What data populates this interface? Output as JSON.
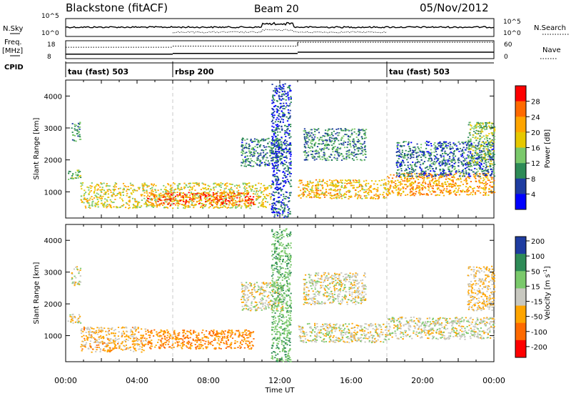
{
  "header": {
    "station": "Blackstone (fitACF)",
    "beam": "Beam 20",
    "date": "05/Nov/2012"
  },
  "summary_panel": {
    "left_label_top": "N.Sky",
    "left_label_freq_1": "Freq.",
    "left_label_freq_2": "[MHz]",
    "left_label_cpid": "CPID",
    "right_label_top": "N.Search",
    "right_label_mid": "Nave",
    "ticks_left_top": [
      "10^5",
      "10^0"
    ],
    "ticks_right_top": [
      "10^5",
      "10^0"
    ],
    "ticks_left_freq": [
      "18",
      "8"
    ],
    "ticks_right_nave": [
      "60",
      "0"
    ],
    "cpid_segments": [
      {
        "label": "tau (fast) 503",
        "start_h": 0,
        "end_h": 6
      },
      {
        "label": "rbsp 200",
        "start_h": 6,
        "end_h": 18
      },
      {
        "label": "tau (fast) 503",
        "start_h": 18,
        "end_h": 24
      }
    ],
    "freq_steps": [
      {
        "start_h": 0,
        "end_h": 6,
        "mhz": 10.5
      },
      {
        "start_h": 6,
        "end_h": 13,
        "mhz": 10.9
      },
      {
        "start_h": 13,
        "end_h": 24,
        "mhz": 11.6
      }
    ],
    "nave_steps": [
      {
        "start_h": 0,
        "end_h": 6,
        "value": 38
      },
      {
        "start_h": 6,
        "end_h": 13,
        "value": 42
      },
      {
        "start_h": 13,
        "end_h": 18,
        "value": 55
      },
      {
        "start_h": 18,
        "end_h": 24,
        "value": 55
      }
    ]
  },
  "chart_data": [
    {
      "type": "heatmap",
      "name_panel": "power",
      "ylabel": "Slant Range [km]",
      "xlabel": "Time UT",
      "x_ticks": [
        "00:00",
        "04:00",
        "08:00",
        "12:00",
        "16:00",
        "20:00",
        "00:00"
      ],
      "x_tick_hours": [
        0,
        4,
        8,
        12,
        16,
        20,
        24
      ],
      "xlim_hours": [
        0,
        24
      ],
      "y_ticks": [
        1000,
        2000,
        3000,
        4000
      ],
      "ylim_km": [
        180,
        4500
      ],
      "colorbar_label": "Power [dB]",
      "colorbar_ticks": [
        "28",
        "24",
        "20",
        "16",
        "12",
        "8",
        "4"
      ],
      "colorbar_colors": [
        "#ff0000",
        "#ff6a00",
        "#ffa500",
        "#e6c800",
        "#7ac96b",
        "#2e8b57",
        "#1e3ca0",
        "#0000ff"
      ],
      "echo_regions": [
        {
          "start_h": 0.1,
          "end_h": 0.8,
          "range_km": [
            1400,
            1700
          ],
          "level_db": 14
        },
        {
          "start_h": 0.3,
          "end_h": 0.8,
          "range_km": [
            2600,
            3200
          ],
          "level_db": 10
        },
        {
          "start_h": 0.8,
          "end_h": 11.5,
          "range_km": [
            500,
            1300
          ],
          "level_db": 18
        },
        {
          "start_h": 4.5,
          "end_h": 10.5,
          "range_km": [
            600,
            1000
          ],
          "level_db": 26
        },
        {
          "start_h": 9.8,
          "end_h": 12.2,
          "range_km": [
            1800,
            2700
          ],
          "level_db": 9
        },
        {
          "start_h": 11.5,
          "end_h": 12.6,
          "range_km": [
            200,
            4400
          ],
          "level_db": 6
        },
        {
          "start_h": 13.0,
          "end_h": 18.0,
          "range_km": [
            800,
            1400
          ],
          "level_db": 20
        },
        {
          "start_h": 13.3,
          "end_h": 16.8,
          "range_km": [
            2000,
            3000
          ],
          "level_db": 10
        },
        {
          "start_h": 18.0,
          "end_h": 24.0,
          "range_km": [
            900,
            1600
          ],
          "level_db": 22
        },
        {
          "start_h": 18.5,
          "end_h": 24.0,
          "range_km": [
            1500,
            2600
          ],
          "level_db": 8
        },
        {
          "start_h": 22.5,
          "end_h": 24.0,
          "range_km": [
            1800,
            3200
          ],
          "level_db": 14
        }
      ]
    },
    {
      "type": "heatmap",
      "name_panel": "velocity",
      "ylabel": "Slant Range [km]",
      "xlabel": "Time UT",
      "x_ticks": [
        "00:00",
        "04:00",
        "08:00",
        "12:00",
        "16:00",
        "20:00",
        "00:00"
      ],
      "x_tick_hours": [
        0,
        4,
        8,
        12,
        16,
        20,
        24
      ],
      "xlim_hours": [
        0,
        24
      ],
      "y_ticks": [
        1000,
        2000,
        3000,
        4000
      ],
      "ylim_km": [
        180,
        4500
      ],
      "colorbar_label": "Velocity [m s",
      "colorbar_label_sup": "-1",
      "colorbar_label_end": "]",
      "colorbar_ticks": [
        "200",
        "100",
        "50",
        "15",
        "-15",
        "-50",
        "-100",
        "-200"
      ],
      "colorbar_colors": [
        "#1e3ca0",
        "#2e8b57",
        "#7ac96b",
        "#c8c8c0",
        "#ffa500",
        "#ff6a00",
        "#ff0000"
      ],
      "echo_regions": [
        {
          "start_h": 0.1,
          "end_h": 0.8,
          "range_km": [
            1400,
            1700
          ],
          "velocity": 0
        },
        {
          "start_h": 0.3,
          "end_h": 0.8,
          "range_km": [
            2600,
            3200
          ],
          "velocity": 0
        },
        {
          "start_h": 0.8,
          "end_h": 4.5,
          "range_km": [
            500,
            1300
          ],
          "velocity": -30
        },
        {
          "start_h": 4.5,
          "end_h": 10.5,
          "range_km": [
            600,
            1200
          ],
          "velocity": -60
        },
        {
          "start_h": 9.8,
          "end_h": 12.2,
          "range_km": [
            1800,
            2700
          ],
          "velocity": 0
        },
        {
          "start_h": 11.5,
          "end_h": 12.6,
          "range_km": [
            200,
            4400
          ],
          "velocity": 60
        },
        {
          "start_h": 13.0,
          "end_h": 18.0,
          "range_km": [
            800,
            1400
          ],
          "velocity": 0
        },
        {
          "start_h": 13.3,
          "end_h": 16.8,
          "range_km": [
            2000,
            3000
          ],
          "velocity": 0
        },
        {
          "start_h": 18.0,
          "end_h": 24.0,
          "range_km": [
            900,
            1600
          ],
          "velocity": 0
        },
        {
          "start_h": 22.5,
          "end_h": 24.0,
          "range_km": [
            1800,
            3200
          ],
          "velocity": -20
        }
      ]
    }
  ]
}
